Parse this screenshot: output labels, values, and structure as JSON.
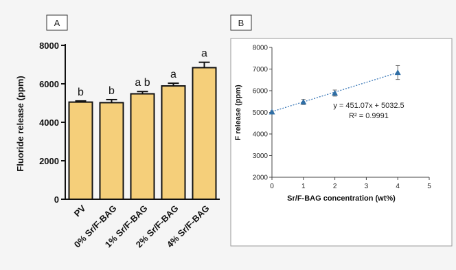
{
  "colors": {
    "bar_fill": "#f5cf7a",
    "bar_stroke": "#111111",
    "marker": "#2f6ea5",
    "trend_line": "#3a78b8",
    "axis": "#111111",
    "panel_b_background": "#ffffff"
  },
  "chart_data": [
    {
      "panel_label": "A",
      "type": "bar",
      "ylabel": "Fluoride release (ppm)",
      "xlabel": "",
      "categories": [
        "PV",
        "0% Sr/F-BAG",
        "1% Sr/F-BAG",
        "2% Sr/F-BAG",
        "4% Sr/F-BAG"
      ],
      "values": [
        5050,
        5020,
        5480,
        5890,
        6840
      ],
      "errors": [
        60,
        160,
        120,
        140,
        280
      ],
      "significance_labels": [
        "b",
        "b",
        "a b",
        "a",
        "a"
      ],
      "ylim": [
        0,
        8000
      ],
      "yticks": [
        0,
        2000,
        4000,
        6000,
        8000
      ],
      "ytick_labels": [
        "0",
        "2000",
        "4000",
        "6000",
        "8000"
      ],
      "grid": false,
      "legend": "none"
    },
    {
      "panel_label": "B",
      "type": "scatter",
      "xlabel": "Sr/F-BAG concentration (wt%)",
      "ylabel": "F release (ppm)",
      "x": [
        0,
        1,
        2,
        4
      ],
      "y": [
        5020,
        5480,
        5890,
        6840
      ],
      "errors": [
        40,
        120,
        140,
        320
      ],
      "trendline": {
        "slope": 451.07,
        "intercept": 5032.5,
        "style": "dotted"
      },
      "equation_text": "y = 451.07x + 5032.5",
      "r_squared_text": "R² = 0.9991",
      "xlim": [
        0,
        5
      ],
      "ylim": [
        2000,
        8000
      ],
      "xticks": [
        0,
        1,
        2,
        3,
        4,
        5
      ],
      "xtick_labels": [
        "0",
        "1",
        "2",
        "3",
        "4",
        "5"
      ],
      "yticks": [
        2000,
        3000,
        4000,
        5000,
        6000,
        7000,
        8000
      ],
      "ytick_labels": [
        "2000",
        "3000",
        "4000",
        "5000",
        "6000",
        "7000",
        "8000"
      ],
      "grid": false,
      "legend": "none"
    }
  ]
}
